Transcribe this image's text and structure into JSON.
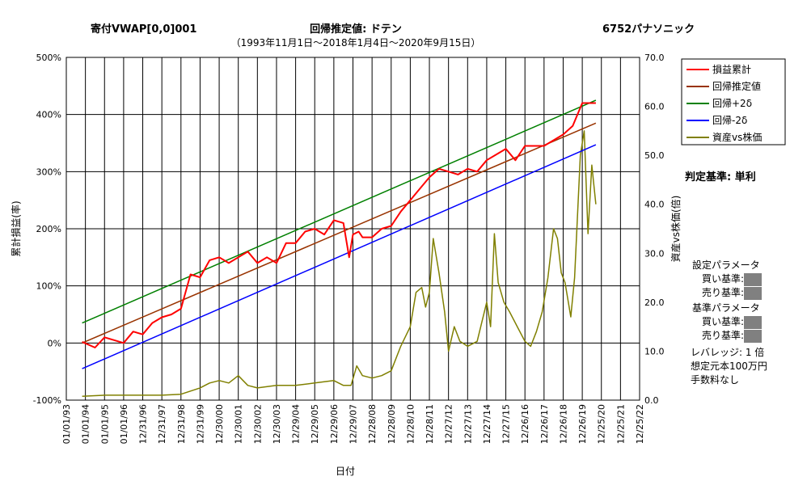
{
  "header": {
    "left_title": "寄付VWAP[0,0]001",
    "center_title": "回帰推定値: ドテン",
    "right_title": "6752パナソニック",
    "subtitle": "（1993年11月1日～2018年1月4日～2020年9月15日）"
  },
  "side_panel": {
    "criterion": "判定基準: 単利",
    "settings_title": "設定パラメータ",
    "buy_label": "買い基準:",
    "sell_label": "売り基準:",
    "base_title": "基準パラメータ",
    "base_buy_label": "買い基準:",
    "base_sell_label": "売り基準:",
    "leverage": "レバレッジ: 1 倍",
    "capital": "想定元本100万円",
    "fees": "手数料なし"
  },
  "chart_data": {
    "type": "line",
    "xlabel": "日付",
    "ylabel_left": "累計損益(率)",
    "ylabel_right": "資産vs株価(倍)",
    "ylim_left": [
      -100,
      500
    ],
    "ylim_right": [
      0,
      70
    ],
    "yticks_left": [
      "-100%",
      "0%",
      "100%",
      "200%",
      "300%",
      "400%",
      "500%"
    ],
    "yticks_right": [
      "0.0",
      "10.0",
      "20.0",
      "30.0",
      "40.0",
      "50.0",
      "60.0",
      "70.0"
    ],
    "xticks": [
      "01/01/93",
      "01/01/94",
      "01/01/95",
      "01/01/96",
      "12/31/96",
      "12/31/97",
      "12/31/98",
      "12/31/99",
      "12/30/00",
      "12/30/01",
      "12/30/02",
      "12/30/03",
      "12/29/04",
      "12/29/05",
      "12/29/06",
      "12/29/07",
      "12/28/08",
      "12/28/09",
      "12/28/10",
      "12/28/11",
      "12/27/12",
      "12/27/13",
      "12/27/14",
      "12/27/15",
      "12/26/16",
      "12/26/17",
      "12/26/18",
      "12/26/19",
      "12/25/20",
      "12/25/21",
      "12/25/22"
    ],
    "grid": true,
    "legend_position": "top-right",
    "series": [
      {
        "name": "損益累計",
        "axis": "left",
        "color": "#ff0000",
        "x": [
          1993.83,
          1994.5,
          1995.0,
          1995.5,
          1996.0,
          1996.5,
          1997.0,
          1997.5,
          1998.0,
          1998.5,
          1999.0,
          1999.5,
          2000.0,
          2000.5,
          2001.0,
          2001.5,
          2002.0,
          2002.5,
          2003.0,
          2003.5,
          2004.0,
          2004.5,
          2005.0,
          2005.5,
          2006.0,
          2006.5,
          2007.0,
          2007.5,
          2007.8,
          2008.0,
          2008.3,
          2008.5,
          2009.0,
          2009.5,
          2010.0,
          2010.5,
          2011.0,
          2011.5,
          2012.0,
          2012.5,
          2013.0,
          2013.5,
          2014.0,
          2014.5,
          2015.0,
          2015.5,
          2016.0,
          2016.5,
          2017.0,
          2017.5,
          2018.0,
          2018.5,
          2019.0,
          2019.5,
          2020.0,
          2020.3,
          2020.71
        ],
        "y": [
          2,
          -8,
          10,
          5,
          0,
          20,
          15,
          35,
          45,
          50,
          60,
          120,
          115,
          145,
          150,
          140,
          150,
          160,
          140,
          150,
          140,
          175,
          175,
          195,
          200,
          190,
          215,
          210,
          150,
          190,
          195,
          185,
          185,
          200,
          205,
          230,
          250,
          270,
          290,
          305,
          300,
          295,
          305,
          300,
          320,
          330,
          340,
          320,
          345,
          345,
          345,
          355,
          365,
          380,
          420,
          420,
          420
        ]
      },
      {
        "name": "回帰推定値",
        "axis": "left",
        "color": "#993300",
        "x": [
          1993.83,
          2020.71
        ],
        "y": [
          0,
          385
        ]
      },
      {
        "name": "回帰+2δ",
        "axis": "left",
        "color": "#008000",
        "x": [
          1993.83,
          2020.71
        ],
        "y": [
          35,
          425
        ]
      },
      {
        "name": "回帰-2δ",
        "axis": "left",
        "color": "#0000ff",
        "x": [
          1993.83,
          2020.71
        ],
        "y": [
          -45,
          347
        ]
      },
      {
        "name": "資産vs株価",
        "axis": "right",
        "color": "#808000",
        "x": [
          1993.83,
          1995.0,
          1996.0,
          1997.0,
          1998.0,
          1999.0,
          2000.0,
          2000.5,
          2001.0,
          2001.5,
          2002.0,
          2002.5,
          2003.0,
          2004.0,
          2005.0,
          2006.0,
          2007.0,
          2007.5,
          2007.9,
          2008.2,
          2008.5,
          2009.0,
          2009.5,
          2010.0,
          2010.5,
          2011.0,
          2011.3,
          2011.6,
          2011.8,
          2012.0,
          2012.2,
          2012.5,
          2012.8,
          2013.0,
          2013.3,
          2013.6,
          2014.0,
          2014.5,
          2015.0,
          2015.2,
          2015.4,
          2015.6,
          2015.9,
          2016.2,
          2016.6,
          2017.0,
          2017.3,
          2017.6,
          2017.9,
          2018.2,
          2018.5,
          2018.7,
          2018.9,
          2019.1,
          2019.4,
          2019.6,
          2019.9,
          2020.1,
          2020.3,
          2020.5,
          2020.71
        ],
        "y": [
          0.8,
          1.0,
          1.0,
          1.0,
          1.0,
          1.2,
          2.5,
          3.5,
          4.0,
          3.5,
          5.0,
          3.0,
          2.5,
          3.0,
          3.0,
          3.5,
          4.0,
          3.0,
          3.0,
          7.0,
          5.0,
          4.5,
          5.0,
          6.0,
          11.0,
          15.0,
          22.0,
          23.0,
          19.0,
          22.0,
          33.0,
          26.0,
          18.0,
          10.0,
          15.0,
          12.0,
          11.0,
          12.0,
          20.0,
          15.0,
          34.0,
          24.0,
          20.0,
          18.0,
          15.0,
          12.0,
          11.0,
          14.0,
          18.0,
          25.0,
          35.0,
          33.0,
          26.0,
          24.0,
          17.0,
          25.0,
          50.0,
          55.0,
          34.0,
          48.0,
          40.0
        ]
      }
    ]
  }
}
